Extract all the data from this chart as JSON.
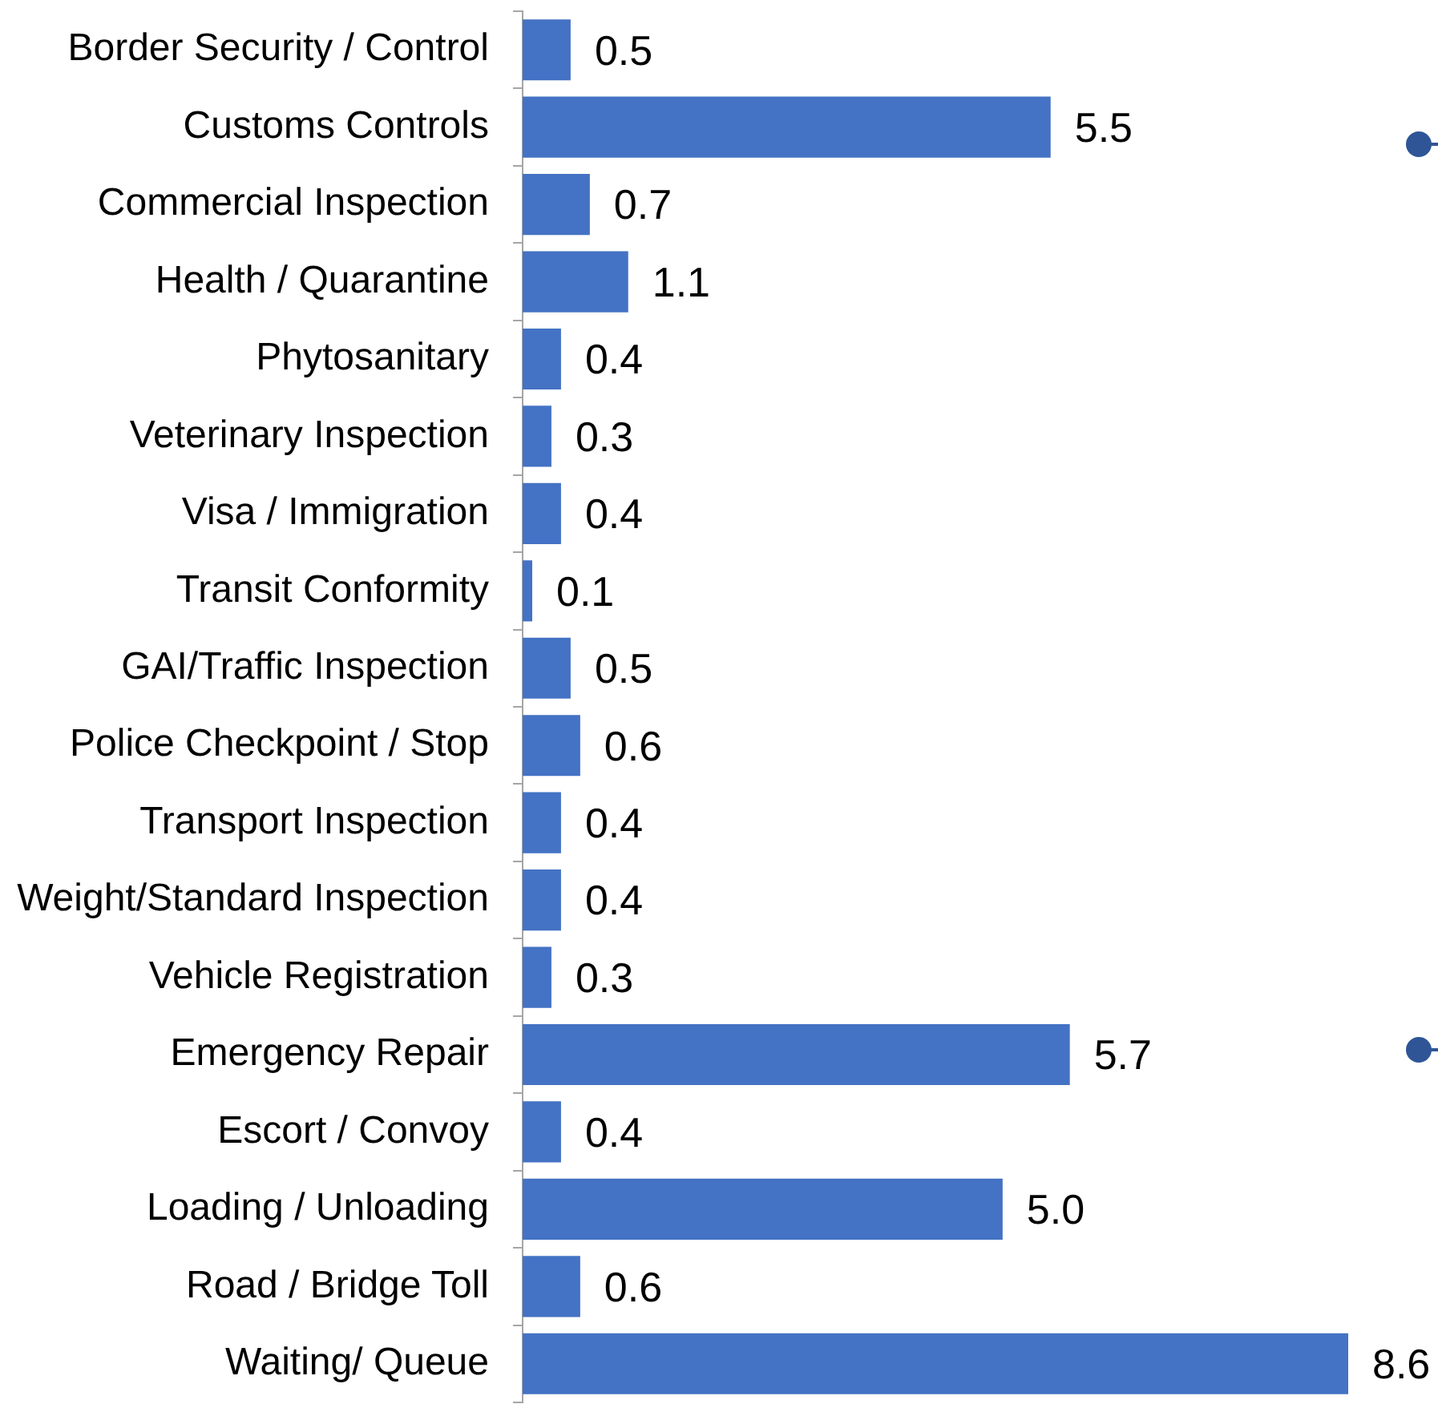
{
  "chart_data": {
    "type": "bar",
    "orientation": "horizontal",
    "tick_labels": "y",
    "categories": [
      "Border Security / Control",
      "Customs Controls",
      "Commercial Inspection",
      "Health / Quarantine",
      "Phytosanitary",
      "Veterinary Inspection",
      "Visa / Immigration",
      "Transit Conformity",
      "GAI/Traffic Inspection",
      "Police Checkpoint / Stop",
      "Transport Inspection",
      "Weight/Standard Inspection",
      "Vehicle Registration",
      "Emergency Repair",
      "Escort / Convoy",
      "Loading / Unloading",
      "Road / Bridge Toll",
      "Waiting/ Queue"
    ],
    "values": [
      0.5,
      5.5,
      0.7,
      1.1,
      0.4,
      0.3,
      0.4,
      0.1,
      0.5,
      0.6,
      0.4,
      0.4,
      0.3,
      5.7,
      0.4,
      5.0,
      0.6,
      8.6
    ],
    "value_labels": [
      "0.5",
      "5.5",
      "0.7",
      "1.1",
      "0.4",
      "0.3",
      "0.4",
      "0.1",
      "0.5",
      "0.6",
      "0.4",
      "0.4",
      "0.3",
      "5.7",
      "0.4",
      "5.0",
      "0.6",
      "8.6"
    ],
    "color": "#4472c4"
  }
}
